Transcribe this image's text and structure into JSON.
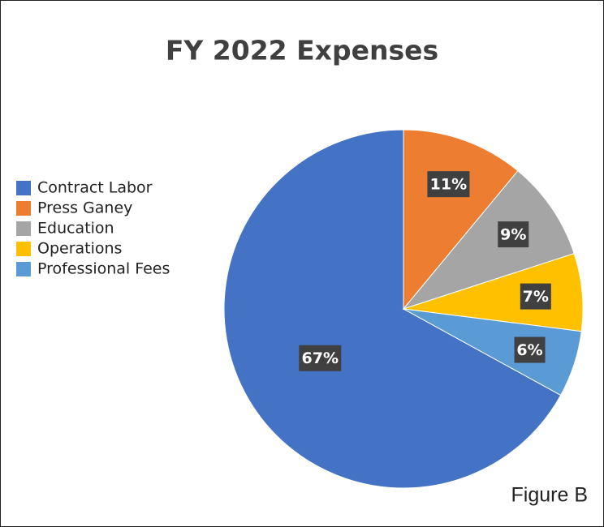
{
  "chart_data": {
    "type": "pie",
    "title": "FY 2022 Expenses",
    "annotation": "Figure B",
    "categories": [
      "Contract Labor",
      "Press Ganey",
      "Education",
      "Operations",
      "Professional Fees"
    ],
    "values": [
      67,
      11,
      9,
      7,
      6
    ],
    "value_labels": [
      "67%",
      "11%",
      "9%",
      "7%",
      "6%"
    ],
    "colors": [
      "#4472c4",
      "#ed7d31",
      "#a5a5a5",
      "#ffc000",
      "#5b9bd5"
    ],
    "legend": "left"
  }
}
